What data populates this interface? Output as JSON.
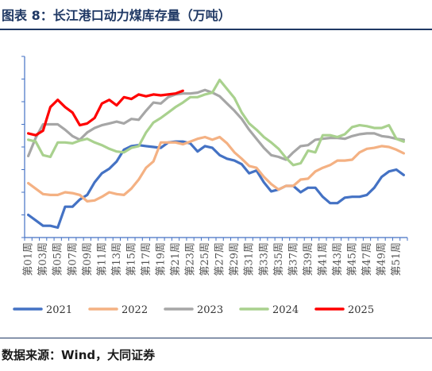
{
  "page": {
    "title": "图表 8：长江港口动力煤库存量（万吨）",
    "source": "数据来源：Wind，大同证券"
  },
  "colors": {
    "2021": "#4472c4",
    "2022": "#f4b183",
    "2023": "#a6a6a6",
    "2024": "#a9d18e",
    "2025": "#ff0000",
    "rule": "#1f3864",
    "axis": "#4472c4"
  },
  "chart_data": {
    "type": "line",
    "title": "",
    "xlabel": "",
    "ylabel": "万吨",
    "ylim": [
      0,
      1000
    ],
    "yticks": [
      0,
      125,
      250,
      375,
      500,
      625,
      750,
      875,
      1000
    ],
    "ytick_labels_visible": false,
    "x_categories": [
      "第01周",
      "第02周",
      "第03周",
      "第04周",
      "第05周",
      "第06周",
      "第07周",
      "第08周",
      "第09周",
      "第10周",
      "第11周",
      "第12周",
      "第13周",
      "第14周",
      "第15周",
      "第16周",
      "第17周",
      "第18周",
      "第19周",
      "第20周",
      "第21周",
      "第22周",
      "第23周",
      "第24周",
      "第25周",
      "第26周",
      "第27周",
      "第28周",
      "第29周",
      "第30周",
      "第31周",
      "第32周",
      "第33周",
      "第34周",
      "第35周",
      "第36周",
      "第37周",
      "第38周",
      "第39周",
      "第40周",
      "第41周",
      "第42周",
      "第43周",
      "第44周",
      "第45周",
      "第46周",
      "第47周",
      "第48周",
      "第49周",
      "第50周",
      "第51周",
      "第52周"
    ],
    "x_labels_shown": [
      "第01周",
      "第03周",
      "第05周",
      "第07周",
      "第09周",
      "第11周",
      "第13周",
      "第15周",
      "第17周",
      "第19周",
      "第21周",
      "第23周",
      "第25周",
      "第27周",
      "第29周",
      "第31周",
      "第33周",
      "第35周",
      "第37周",
      "第39周",
      "第41周",
      "第43周",
      "第45周",
      "第47周",
      "第49周",
      "第51周"
    ],
    "legend_position": "bottom",
    "series": [
      {
        "name": "2021",
        "color_key": "2021",
        "values": [
          125,
          95,
          65,
          65,
          55,
          170,
          170,
          210,
          235,
          305,
          355,
          380,
          420,
          485,
          505,
          510,
          505,
          500,
          495,
          525,
          530,
          530,
          520,
          475,
          505,
          495,
          455,
          435,
          425,
          405,
          355,
          370,
          305,
          255,
          265,
          285,
          285,
          250,
          275,
          275,
          225,
          190,
          190,
          220,
          225,
          225,
          235,
          275,
          335,
          365,
          375,
          345
        ]
      },
      {
        "name": "2022",
        "color_key": "2022",
        "values": [
          300,
          270,
          240,
          235,
          235,
          250,
          245,
          235,
          200,
          205,
          225,
          250,
          240,
          235,
          270,
          320,
          385,
          420,
          525,
          525,
          525,
          515,
          530,
          545,
          555,
          540,
          555,
          520,
          470,
          435,
          395,
          385,
          335,
          295,
          265,
          285,
          285,
          320,
          325,
          365,
          385,
          400,
          425,
          425,
          430,
          470,
          490,
          495,
          505,
          500,
          485,
          465
        ]
      },
      {
        "name": "2023",
        "color_key": "2023",
        "values": [
          450,
          550,
          625,
          625,
          625,
          595,
          560,
          540,
          580,
          605,
          620,
          630,
          640,
          630,
          655,
          650,
          700,
          745,
          740,
          775,
          790,
          795,
          795,
          800,
          815,
          800,
          780,
          740,
          700,
          655,
          595,
          545,
          495,
          455,
          445,
          430,
          470,
          505,
          510,
          540,
          545,
          550,
          550,
          545,
          560,
          570,
          575,
          575,
          560,
          555,
          545,
          540
        ]
      },
      {
        "name": "2024",
        "color_key": "2024",
        "values": [
          540,
          530,
          455,
          445,
          525,
          525,
          520,
          535,
          545,
          525,
          510,
          490,
          475,
          470,
          495,
          505,
          580,
          635,
          660,
          690,
          720,
          745,
          775,
          775,
          790,
          800,
          870,
          820,
          770,
          690,
          630,
          595,
          555,
          525,
          490,
          440,
          400,
          410,
          480,
          470,
          565,
          565,
          555,
          570,
          610,
          620,
          615,
          605,
          605,
          620,
          545,
          530
        ]
      },
      {
        "name": "2025",
        "color_key": "2025",
        "values": [
          575,
          565,
          590,
          720,
          760,
          720,
          690,
          620,
          630,
          660,
          740,
          760,
          730,
          775,
          765,
          790,
          780,
          790,
          785,
          790,
          795,
          810
        ]
      }
    ]
  }
}
